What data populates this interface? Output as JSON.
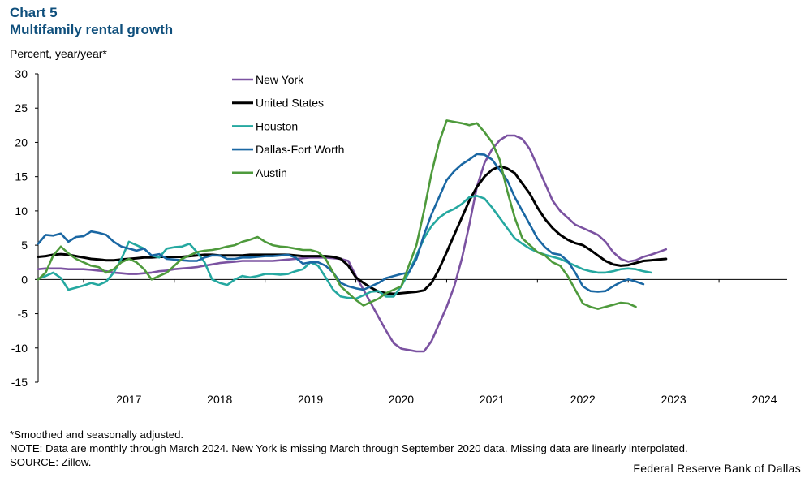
{
  "header": {
    "chart_number": "Chart 5",
    "title": "Multifamily rental growth",
    "y_unit": "Percent, year/year*"
  },
  "footer": {
    "footnote": "*Smoothed and seasonally adjusted.",
    "note": "NOTE: Data are monthly through March 2024. New York is missing March through September 2020 data. Missing data are linearly interpolated.",
    "source": "SOURCE: Zillow.",
    "credit": "Federal Reserve Bank of Dallas"
  },
  "chart_data": {
    "type": "line",
    "title": "Multifamily rental growth",
    "ylabel": "Percent, year/year*",
    "xlabel": "",
    "ylim": [
      -15,
      30
    ],
    "yticks": [
      -15,
      -10,
      -5,
      0,
      5,
      10,
      15,
      20,
      25,
      30
    ],
    "xlim": [
      2016.5,
      2024.75
    ],
    "xtick_labels": [
      "2017",
      "2018",
      "2019",
      "2020",
      "2021",
      "2022",
      "2023",
      "2024"
    ],
    "grid": false,
    "legend_position": "top-left",
    "series": [
      {
        "name": "New York",
        "color": "#7b52a1",
        "start": 2016.5,
        "step": 0.0833333,
        "values": [
          1.5,
          1.6,
          1.6,
          1.6,
          1.5,
          1.5,
          1.5,
          1.4,
          1.3,
          1.2,
          1.0,
          0.9,
          0.8,
          0.8,
          0.9,
          1.0,
          1.2,
          1.3,
          1.5,
          1.6,
          1.7,
          1.8,
          2.0,
          2.2,
          2.4,
          2.5,
          2.6,
          2.7,
          2.7,
          2.7,
          2.7,
          2.7,
          2.8,
          2.9,
          3.0,
          3.1,
          3.2,
          3.2,
          3.2,
          3.1,
          3.0,
          2.7,
          0.5,
          -1.5,
          -3.5,
          -5.5,
          -7.5,
          -9.3,
          -10.1,
          -10.3,
          -10.5,
          -10.5,
          -9.0,
          -6.5,
          -4.0,
          -1.0,
          3.0,
          8.0,
          13.5,
          17.0,
          19.0,
          20.3,
          21.0,
          21.0,
          20.5,
          19.0,
          16.5,
          14.0,
          11.5,
          10.0,
          9.0,
          8.0,
          7.5,
          7.0,
          6.5,
          5.5,
          4.0,
          3.0,
          2.6,
          2.8,
          3.3,
          3.6,
          4.0,
          4.4
        ]
      },
      {
        "name": "United States",
        "color": "#000000",
        "start": 2016.5,
        "step": 0.0833333,
        "values": [
          3.3,
          3.4,
          3.6,
          3.7,
          3.6,
          3.4,
          3.2,
          3.0,
          2.9,
          2.8,
          2.8,
          2.9,
          3.0,
          3.1,
          3.2,
          3.2,
          3.3,
          3.3,
          3.3,
          3.3,
          3.4,
          3.5,
          3.6,
          3.6,
          3.5,
          3.5,
          3.5,
          3.5,
          3.6,
          3.6,
          3.6,
          3.6,
          3.6,
          3.6,
          3.5,
          3.4,
          3.4,
          3.4,
          3.4,
          3.3,
          3.0,
          2.0,
          0.3,
          -0.5,
          -1.2,
          -1.8,
          -2.0,
          -2.1,
          -2.0,
          -1.9,
          -1.8,
          -1.6,
          -0.5,
          1.5,
          4.0,
          6.5,
          9.0,
          11.5,
          13.5,
          15.0,
          16.0,
          16.5,
          16.2,
          15.5,
          14.0,
          12.5,
          10.5,
          8.8,
          7.5,
          6.5,
          5.8,
          5.3,
          5.0,
          4.3,
          3.5,
          2.7,
          2.2,
          2.0,
          2.1,
          2.4,
          2.7,
          2.8,
          2.9,
          3.0
        ]
      },
      {
        "name": "Houston",
        "color": "#25a8a0",
        "start": 2016.5,
        "step": 0.0833333,
        "values": [
          0.1,
          0.5,
          1.0,
          0.2,
          -1.5,
          -1.2,
          -0.9,
          -0.5,
          -0.8,
          -0.3,
          1.0,
          3.0,
          5.5,
          5.0,
          4.5,
          3.5,
          3.2,
          4.5,
          4.7,
          4.8,
          5.2,
          4.0,
          2.5,
          0.0,
          -0.5,
          -0.8,
          0.0,
          0.5,
          0.3,
          0.5,
          0.8,
          0.8,
          0.7,
          0.8,
          1.2,
          1.5,
          2.5,
          2.0,
          0.3,
          -1.5,
          -2.5,
          -2.7,
          -2.8,
          -2.3,
          -1.8,
          -1.7,
          -2.5,
          -2.5,
          -1.0,
          1.0,
          3.5,
          6.0,
          7.8,
          9.0,
          9.8,
          10.3,
          11.0,
          12.0,
          12.2,
          11.8,
          10.5,
          9.0,
          7.5,
          6.0,
          5.2,
          4.5,
          4.0,
          3.6,
          3.3,
          3.0,
          2.5,
          2.0,
          1.5,
          1.2,
          1.0,
          1.0,
          1.2,
          1.5,
          1.6,
          1.5,
          1.2,
          1.0
        ]
      },
      {
        "name": "Dallas-Fort Worth",
        "color": "#1a67a3",
        "start": 2016.5,
        "step": 0.0833333,
        "values": [
          5.2,
          6.5,
          6.4,
          6.7,
          5.5,
          6.2,
          6.3,
          7.0,
          6.8,
          6.5,
          5.5,
          4.8,
          4.5,
          4.2,
          4.5,
          3.5,
          3.7,
          3.0,
          2.9,
          2.8,
          2.7,
          2.7,
          3.2,
          3.5,
          3.5,
          3.0,
          3.0,
          3.2,
          3.2,
          3.3,
          3.4,
          3.4,
          3.5,
          3.6,
          3.2,
          2.3,
          2.5,
          2.5,
          2.0,
          1.0,
          -0.5,
          -1.0,
          -1.3,
          -1.5,
          -1.0,
          -0.5,
          0.2,
          0.5,
          0.8,
          1.0,
          3.0,
          6.5,
          9.5,
          12.0,
          14.5,
          15.8,
          16.8,
          17.5,
          18.3,
          18.2,
          17.5,
          16.0,
          14.5,
          12.0,
          10.0,
          8.0,
          6.0,
          4.7,
          3.8,
          3.6,
          2.7,
          1.0,
          -1.0,
          -1.7,
          -1.8,
          -1.7,
          -1.0,
          -0.4,
          0.0,
          -0.3,
          -0.7
        ]
      },
      {
        "name": "Austin",
        "color": "#4e9a3c",
        "start": 2016.5,
        "step": 0.0833333,
        "values": [
          0.0,
          1.0,
          3.5,
          4.8,
          3.8,
          3.0,
          2.5,
          2.0,
          1.8,
          1.0,
          1.5,
          2.5,
          3.0,
          2.5,
          1.5,
          0.0,
          0.5,
          1.0,
          2.0,
          3.0,
          3.5,
          4.0,
          4.2,
          4.3,
          4.5,
          4.8,
          5.0,
          5.5,
          5.8,
          6.2,
          5.5,
          5.0,
          4.8,
          4.7,
          4.5,
          4.3,
          4.3,
          4.0,
          3.0,
          1.0,
          -1.0,
          -2.0,
          -3.0,
          -3.8,
          -3.3,
          -2.8,
          -2.0,
          -1.5,
          -1.0,
          2.0,
          5.0,
          10.0,
          15.5,
          20.0,
          23.2,
          23.0,
          22.8,
          22.5,
          22.8,
          21.5,
          20.0,
          17.5,
          13.0,
          9.0,
          6.0,
          5.0,
          4.0,
          3.5,
          2.5,
          2.0,
          0.5,
          -1.5,
          -3.5,
          -4.0,
          -4.3,
          -4.0,
          -3.7,
          -3.4,
          -3.5,
          -4.0
        ]
      }
    ]
  }
}
